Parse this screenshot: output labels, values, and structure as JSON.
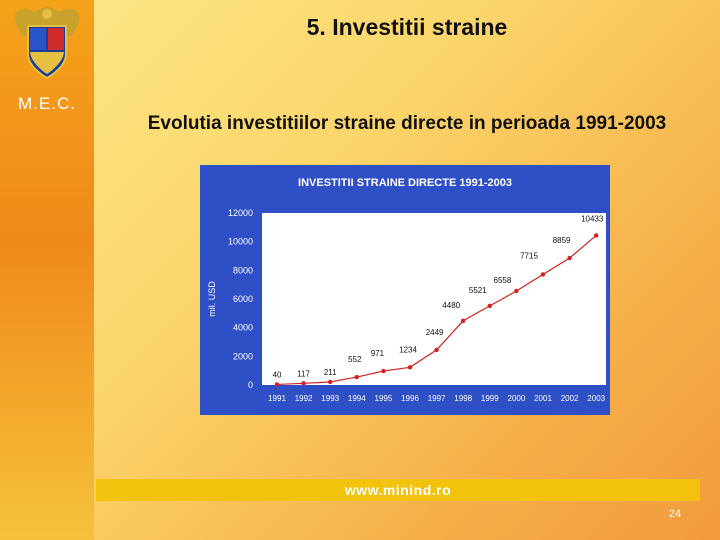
{
  "sidebar": {
    "label": "M.E.C.",
    "crest_icon": "romanian-coat-of-arms-icon"
  },
  "slide": {
    "title": "5. Investitii straine",
    "subtitle": "Evolutia investitiilor straine directe in perioada 1991-2003",
    "footer_link": "www.minind.ro",
    "page_number": "24"
  },
  "colors": {
    "chart_bg": "#2f4fc7",
    "plot_bg": "#ffffff",
    "series": "#d42020",
    "footer": "#f2c20c"
  },
  "chart_data": {
    "type": "line",
    "title": "INVESTITII STRAINE DIRECTE 1991-2003",
    "xlabel": "",
    "ylabel": "mil. USD",
    "ylim": [
      0,
      12000
    ],
    "yticks": [
      0,
      2000,
      4000,
      6000,
      8000,
      10000,
      12000
    ],
    "x": [
      "1991",
      "1992",
      "1993",
      "1994",
      "1995",
      "1996",
      "1997",
      "1998",
      "1999",
      "2000",
      "2001",
      "2002",
      "2003"
    ],
    "series": [
      {
        "values": [
          40,
          117,
          211,
          552,
          971,
          1234,
          2449,
          4480,
          5521,
          6558,
          7715,
          8859,
          10433
        ],
        "labels": [
          "40",
          "117",
          "211",
          "552",
          "971",
          "1234",
          "2449",
          "4480",
          "5521",
          "6558",
          "7715",
          "8859",
          "10433"
        ]
      }
    ],
    "grid": false,
    "legend": "none"
  }
}
